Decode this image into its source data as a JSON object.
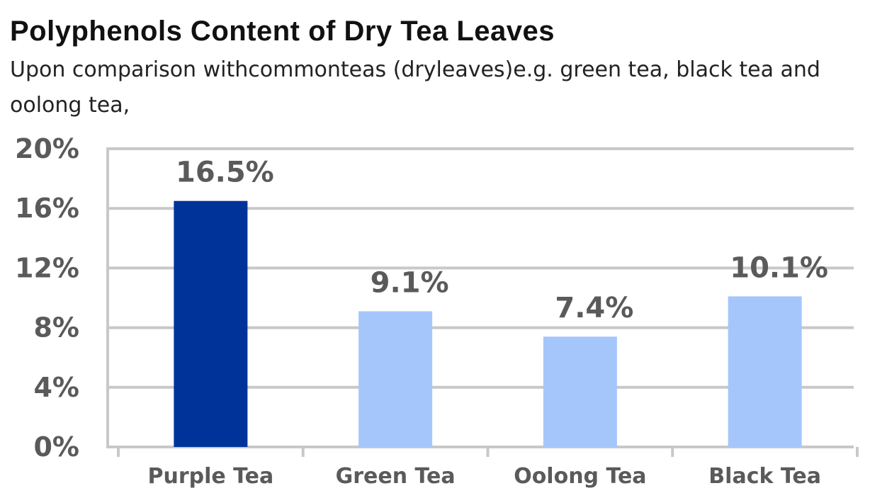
{
  "chart_data": {
    "type": "bar",
    "title": "Polyphenols Content of Dry Tea Leaves",
    "subtitle": "Upon comparison withcommonteas (dryleaves)e.g. green tea, black tea and oolong tea,",
    "xlabel": "",
    "ylabel": "",
    "categories": [
      "Purple Tea",
      "Green Tea",
      "Oolong Tea",
      "Black Tea"
    ],
    "values": [
      16.5,
      9.1,
      7.4,
      10.1
    ],
    "data_labels": [
      "16.5%",
      "9.1%",
      "7.4%",
      "10.1%"
    ],
    "ylim": [
      0,
      20
    ],
    "yticks": [
      0,
      4,
      8,
      12,
      16,
      20
    ],
    "ytick_labels": [
      "0%",
      "4%",
      "8%",
      "12%",
      "16%",
      "20%"
    ],
    "bar_colors": [
      "#00339a",
      "#a4c6fb",
      "#a4c6fb",
      "#a4c6fb"
    ],
    "grid": true,
    "legend": "none"
  }
}
